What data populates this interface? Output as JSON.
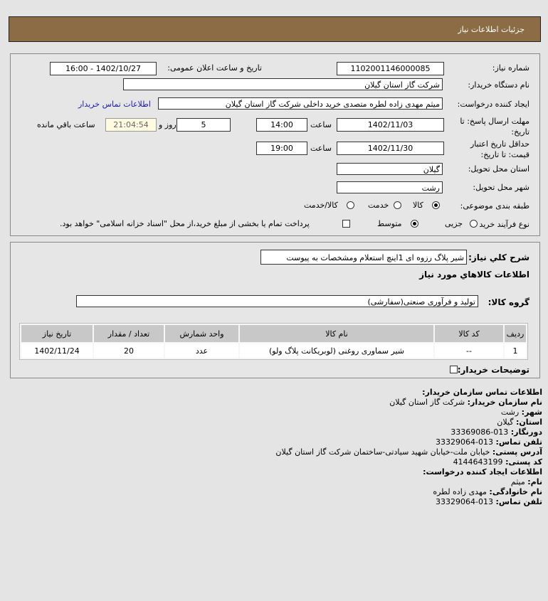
{
  "header": {
    "title": "جزئیات اطلاعات نیاز"
  },
  "form": {
    "need_number_label": "شماره نیاز:",
    "need_number": "1102001146000085",
    "announce_label": "تاریخ و ساعت اعلان عمومی:",
    "announce_value": "1402/10/27 - 16:00",
    "buyer_org_label": "نام دستگاه خریدار:",
    "buyer_org": "شرکت گاز استان گیلان",
    "creator_label": "ایجاد کننده درخواست:",
    "creator": "میثم مهدی زاده لطره متصدی خرید داخلی  شرکت گاز استان گیلان",
    "contact_link": "اطلاعات تماس خریدار",
    "deadline_label": "مهلت ارسال پاسخ: تا تاریخ:",
    "deadline_date": "1402/11/03",
    "time_label": "ساعت",
    "deadline_time": "14:00",
    "days": "5",
    "days_label": "روز و",
    "remaining": "21:04:54",
    "remaining_label": "ساعت باقي مانده",
    "validity_label": "حداقل تاریخ اعتبار قیمت: تا تاریخ:",
    "validity_date": "1402/11/30",
    "validity_time": "19:00",
    "province_label": "استان محل تحویل:",
    "province": "گیلان",
    "city_label": "شهر محل تحویل:",
    "city": "رشت",
    "category_label": "طبقه بندی موضوعی:",
    "category_options": [
      "کالا",
      "خدمت",
      "کالا/خدمت"
    ],
    "category_selected": "کالا",
    "process_label": "نوع فرآیند خرید :",
    "process_options": [
      "جزیی",
      "متوسط"
    ],
    "process_selected": "متوسط",
    "payment_note": "پرداخت تمام یا بخشی از مبلغ خرید،از محل \"اسناد خزانه اسلامی\" خواهد بود."
  },
  "details": {
    "desc_label": "شرح كلي نياز:",
    "desc": "شیر پلاگ رزوه ای 1اینچ استعلام ومشخصات به پیوست",
    "goods_heading": "اطلاعات كالاهاي مورد نياز",
    "group_label": "گروه کالا:",
    "group": "تولید و فرآوری صنعتی(سفارشی)",
    "columns": [
      "ردیف",
      "کد کالا",
      "نام کالا",
      "واحد شمارش",
      "تعداد / مقدار",
      "تاریخ نیاز"
    ],
    "rows": [
      [
        "1",
        "--",
        "شیر سماوری روغنی (لوبریکانت پلاگ ولو)",
        "عدد",
        "20",
        "1402/11/24"
      ]
    ],
    "notes_label": "توضیحات خریدار:"
  },
  "contact": {
    "heading": "اطلاعات تماس سازمان خریدار:",
    "org_label": "نام سازمان خریدار:",
    "org": "شرکت گاز استان گیلان",
    "city_label": "شهر:",
    "city": "رشت",
    "province_label": "استان:",
    "province": "گیلان",
    "fax_label": "دورنگار:",
    "fax": "013-33369086",
    "phone_label": "تلفن تماس:",
    "phone": "013-33329064",
    "address_label": "آدرس پستی:",
    "address": "خیابان ملت-خیابان شهید سیادتی-ساختمان شرکت گاز استان گیلان",
    "postal_label": "کد پستی:",
    "postal": "4144643199",
    "creator_heading": "اطلاعات ایجاد کننده درخواست:",
    "name_label": "نام:",
    "name": "میثم",
    "family_label": "نام خانوادگی:",
    "family": "مهدی زاده لطره",
    "creator_phone_label": "تلفن تماس:",
    "creator_phone": "013-33329064"
  }
}
